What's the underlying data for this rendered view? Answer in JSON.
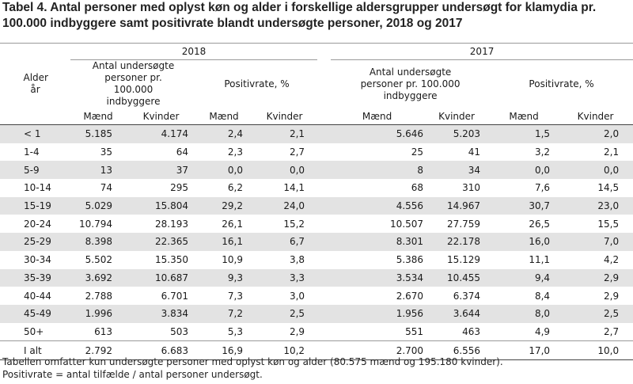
{
  "title": "Tabel 4. Antal personer med oplyst køn og alder i forskellige aldersgrupper undersøgt for klamydia pr. 100.000 indbyggere samt positivrate blandt undersøgte personer, 2018 og 2017",
  "header": {
    "age_col": "Alder år",
    "years": [
      "2018",
      "2017"
    ],
    "group_tested": "Antal undersøgte personer pr. 100.000 indbyggere",
    "group_rate": "Positivrate, %",
    "men": "Mænd",
    "women": "Kvinder"
  },
  "rows": [
    {
      "age": "< 1",
      "t18m": "5.185",
      "t18k": "4.174",
      "p18m": "2,4",
      "p18k": "2,1",
      "t17m": "5.646",
      "t17k": "5.203",
      "p17m": "1,5",
      "p17k": "2,0"
    },
    {
      "age": "1-4",
      "t18m": "35",
      "t18k": "64",
      "p18m": "2,3",
      "p18k": "2,7",
      "t17m": "25",
      "t17k": "41",
      "p17m": "3,2",
      "p17k": "2,1"
    },
    {
      "age": "5-9",
      "t18m": "13",
      "t18k": "37",
      "p18m": "0,0",
      "p18k": "0,0",
      "t17m": "8",
      "t17k": "34",
      "p17m": "0,0",
      "p17k": "0,0"
    },
    {
      "age": "10-14",
      "t18m": "74",
      "t18k": "295",
      "p18m": "6,2",
      "p18k": "14,1",
      "t17m": "68",
      "t17k": "310",
      "p17m": "7,6",
      "p17k": "14,5"
    },
    {
      "age": "15-19",
      "t18m": "5.029",
      "t18k": "15.804",
      "p18m": "29,2",
      "p18k": "24,0",
      "t17m": "4.556",
      "t17k": "14.967",
      "p17m": "30,7",
      "p17k": "23,0"
    },
    {
      "age": "20-24",
      "t18m": "10.794",
      "t18k": "28.193",
      "p18m": "26,1",
      "p18k": "15,2",
      "t17m": "10.507",
      "t17k": "27.759",
      "p17m": "26,5",
      "p17k": "15,5"
    },
    {
      "age": "25-29",
      "t18m": "8.398",
      "t18k": "22.365",
      "p18m": "16,1",
      "p18k": "6,7",
      "t17m": "8.301",
      "t17k": "22.178",
      "p17m": "16,0",
      "p17k": "7,0"
    },
    {
      "age": "30-34",
      "t18m": "5.502",
      "t18k": "15.350",
      "p18m": "10,9",
      "p18k": "3,8",
      "t17m": "5.386",
      "t17k": "15.129",
      "p17m": "11,1",
      "p17k": "4,2"
    },
    {
      "age": "35-39",
      "t18m": "3.692",
      "t18k": "10.687",
      "p18m": "9,3",
      "p18k": "3,3",
      "t17m": "3.534",
      "t17k": "10.455",
      "p17m": "9,4",
      "p17k": "2,9"
    },
    {
      "age": "40-44",
      "t18m": "2.788",
      "t18k": "6.701",
      "p18m": "7,3",
      "p18k": "3,0",
      "t17m": "2.670",
      "t17k": "6.374",
      "p17m": "8,4",
      "p17k": "2,9"
    },
    {
      "age": "45-49",
      "t18m": "1.996",
      "t18k": "3.834",
      "p18m": "7,2",
      "p18k": "2,5",
      "t17m": "1.956",
      "t17k": "3.644",
      "p17m": "8,0",
      "p17k": "2,5"
    },
    {
      "age": "50+",
      "t18m": "613",
      "t18k": "503",
      "p18m": "5,3",
      "p18k": "2,9",
      "t17m": "551",
      "t17k": "463",
      "p17m": "4,9",
      "p17k": "2,7"
    },
    {
      "age": "I alt",
      "t18m": "2.792",
      "t18k": "6.683",
      "p18m": "16,9",
      "p18k": "10,2",
      "t17m": "2.700",
      "t17k": "6.556",
      "p17m": "17,0",
      "p17k": "10,0"
    }
  ],
  "notes": [
    "Tabellen omfatter kun undersøgte personer med oplyst køn og alder (80.575 mænd og 195.180 kvinder).",
    "Positivrate = antal tilfælde / antal personer undersøgt."
  ]
}
